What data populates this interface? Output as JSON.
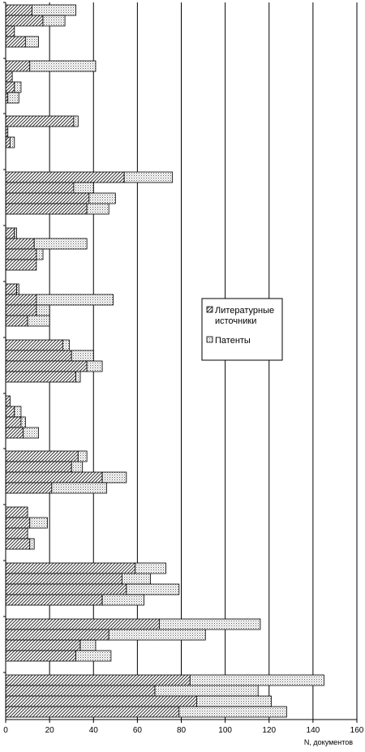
{
  "chart_data": {
    "type": "bar",
    "orientation": "horizontal",
    "stacked": true,
    "xlabel": "N, документов",
    "xlim": [
      0,
      160
    ],
    "xticks": [
      0,
      20,
      40,
      60,
      80,
      100,
      120,
      140,
      160
    ],
    "grid": "vertical",
    "legend_position": "center-right",
    "series": [
      {
        "name": "Литературные источники",
        "pattern": "diagonal-hatch",
        "values": [
          12,
          17,
          4,
          9,
          11,
          3,
          4,
          1,
          31,
          1,
          2,
          54,
          31,
          38,
          37,
          4,
          13,
          14,
          14,
          5,
          14,
          14,
          10,
          26,
          30,
          37,
          32,
          2,
          4,
          7,
          8,
          33,
          30,
          44,
          21,
          10,
          11,
          10,
          11,
          59,
          53,
          55,
          44,
          70,
          47,
          34,
          32,
          84,
          68,
          87,
          79
        ]
      },
      {
        "name": "Патенты",
        "pattern": "dotted",
        "values": [
          20,
          10,
          0,
          6,
          30,
          0,
          3,
          5,
          2,
          0,
          2,
          22,
          9,
          12,
          10,
          1,
          24,
          3,
          0,
          1,
          35,
          6,
          10,
          3,
          10,
          7,
          2,
          0,
          3,
          2,
          7,
          4,
          5,
          11,
          25,
          0,
          8,
          0,
          2,
          14,
          13,
          24,
          19,
          46,
          44,
          7,
          16,
          61,
          47,
          34,
          49
        ]
      }
    ]
  },
  "legend": {
    "items": [
      {
        "label": "Литературные\nисточники",
        "series": 0
      },
      {
        "label": "Патенты",
        "series": 1
      }
    ]
  },
  "axis": {
    "tick_labels": [
      "0",
      "20",
      "40",
      "60",
      "80",
      "100",
      "120",
      "140",
      "160"
    ],
    "title": "N, документов"
  }
}
